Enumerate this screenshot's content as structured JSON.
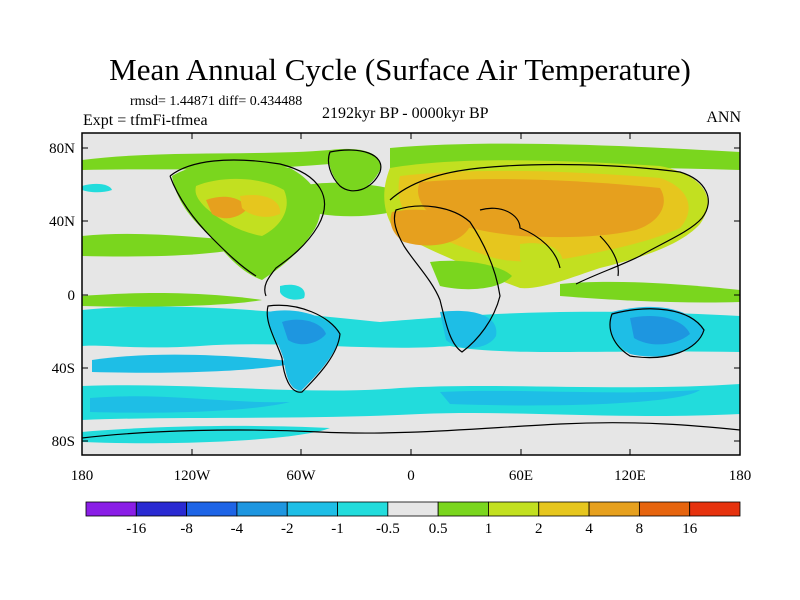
{
  "figure": {
    "title": "Mean Annual Cycle (Surface Air Temperature)",
    "stats": "rmsd= 1.44871 diff= 0.434488",
    "expt": "Expt = tfmFi-tfmea",
    "period": "2192kyr BP - 0000kyr BP",
    "season": "ANN"
  },
  "axes": {
    "lat_labels": [
      "80N",
      "40N",
      "0",
      "40S",
      "80S"
    ],
    "lon_labels": [
      "180",
      "120W",
      "60W",
      "0",
      "60E",
      "120E",
      "180"
    ]
  },
  "colorbar": {
    "colors": [
      "#8a1ee6",
      "#2a2ad2",
      "#1e64e6",
      "#1e96e0",
      "#1ebee6",
      "#22dcdc",
      "#e6e6e6",
      "#7ad61e",
      "#c2e020",
      "#e6c61e",
      "#e6a01e",
      "#e6640e",
      "#e6320e"
    ],
    "labels": [
      "-16",
      "-8",
      "-4",
      "-2",
      "-1",
      "-0.5",
      "0.5",
      "1",
      "2",
      "4",
      "8",
      "16"
    ]
  },
  "palette": {
    "ocean_neutral": "#e6e6e6",
    "green": "#7ad61e",
    "yellow_green": "#c2e020",
    "amber": "#e6c61e",
    "orange": "#e6a01e",
    "cyan": "#1ebee6",
    "teal": "#22dcdc",
    "blue": "#1e96e0"
  }
}
